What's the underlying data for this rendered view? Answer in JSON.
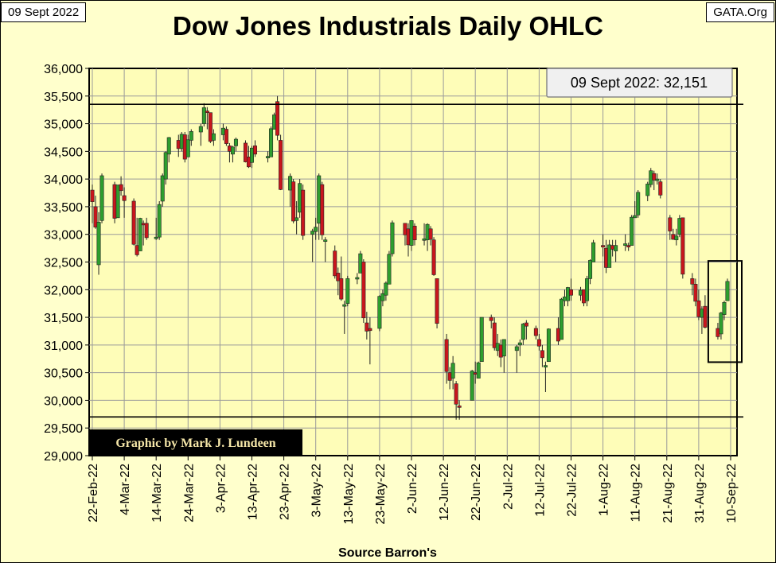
{
  "header": {
    "date_tag": "09 Sept 2022",
    "site_tag": "GATA.Org",
    "title": "Dow Jones Industrials Daily OHLC"
  },
  "colors": {
    "background": "#ffffcc",
    "plot_bg": "#fefdb8",
    "up": "#2e9e2e",
    "down": "#c8161d",
    "grid": "#9a9a9a"
  },
  "chart_data": {
    "type": "ohlc",
    "title": "Dow Jones Industrials Daily OHLC",
    "xlabel": "Source Barron's",
    "ylabel": "",
    "ylim": [
      29000,
      36000
    ],
    "y_ticks": [
      "29,000",
      "29,500",
      "30,000",
      "30,500",
      "31,000",
      "31,500",
      "32,000",
      "32,500",
      "33,000",
      "33,500",
      "34,000",
      "34,500",
      "35,000",
      "35,500",
      "36,000"
    ],
    "x_ticks": [
      "22-Feb-22",
      "4-Mar-22",
      "14-Mar-22",
      "24-Mar-22",
      "3-Apr-22",
      "13-Apr-22",
      "23-Apr-22",
      "3-May-22",
      "13-May-22",
      "23-May-22",
      "2-Jun-22",
      "12-Jun-22",
      "22-Jun-22",
      "2-Jul-22",
      "12-Jul-22",
      "22-Jul-22",
      "1-Aug-22",
      "11-Aug-22",
      "21-Aug-22",
      "31-Aug-22",
      "10-Sep-22"
    ],
    "grid": true,
    "reference_lines": [
      35350,
      29700
    ],
    "annotation": "09 Sept 2022: 32,151",
    "credit": "Graphic by Mark J. Lundeen",
    "ohlc": [
      [
        "2022-02-22",
        33800,
        33900,
        33200,
        33590,
        "down"
      ],
      [
        "2022-02-23",
        33500,
        33700,
        33100,
        33130,
        "down"
      ],
      [
        "2022-02-24",
        32450,
        33400,
        32270,
        33220,
        "up"
      ],
      [
        "2022-02-25",
        33250,
        34100,
        33200,
        34060,
        "up"
      ],
      [
        "2022-03-01",
        33900,
        33950,
        33200,
        33290,
        "down"
      ],
      [
        "2022-03-02",
        33300,
        33900,
        33300,
        33890,
        "up"
      ],
      [
        "2022-03-03",
        33900,
        34050,
        33700,
        33790,
        "down"
      ],
      [
        "2022-03-04",
        33700,
        33850,
        33300,
        33610,
        "down"
      ],
      [
        "2022-03-07",
        33600,
        33650,
        32800,
        32820,
        "down"
      ],
      [
        "2022-03-08",
        32800,
        33300,
        32600,
        32630,
        "down"
      ],
      [
        "2022-03-09",
        32700,
        33300,
        32700,
        33290,
        "up"
      ],
      [
        "2022-03-10",
        33200,
        33250,
        32800,
        33170,
        "down"
      ],
      [
        "2022-03-11",
        33200,
        33300,
        32900,
        32940,
        "down"
      ],
      [
        "2022-03-14",
        32950,
        33300,
        32900,
        32950,
        "up"
      ],
      [
        "2022-03-15",
        32950,
        33600,
        32900,
        33540,
        "up"
      ],
      [
        "2022-03-16",
        33600,
        34100,
        33500,
        34060,
        "up"
      ],
      [
        "2022-03-17",
        34000,
        34500,
        33900,
        34480,
        "up"
      ],
      [
        "2022-03-18",
        34450,
        34760,
        34300,
        34750,
        "up"
      ],
      [
        "2022-03-21",
        34700,
        34800,
        34400,
        34550,
        "down"
      ],
      [
        "2022-03-22",
        34550,
        34850,
        34500,
        34810,
        "up"
      ],
      [
        "2022-03-23",
        34800,
        34850,
        34300,
        34360,
        "down"
      ],
      [
        "2022-03-24",
        34400,
        34800,
        34400,
        34710,
        "up"
      ],
      [
        "2022-03-25",
        34700,
        34900,
        34600,
        34860,
        "up"
      ],
      [
        "2022-03-28",
        34850,
        35000,
        34600,
        34950,
        "up"
      ],
      [
        "2022-03-29",
        35000,
        35370,
        34950,
        35290,
        "up"
      ],
      [
        "2022-03-30",
        35200,
        35300,
        34900,
        35230,
        "down"
      ],
      [
        "2022-03-31",
        35200,
        35200,
        34650,
        34680,
        "down"
      ],
      [
        "2022-04-01",
        34700,
        34900,
        34600,
        34820,
        "up"
      ],
      [
        "2022-04-04",
        34800,
        35000,
        34700,
        34920,
        "up"
      ],
      [
        "2022-04-05",
        34900,
        34950,
        34600,
        34640,
        "down"
      ],
      [
        "2022-04-06",
        34600,
        34650,
        34300,
        34500,
        "down"
      ],
      [
        "2022-04-07",
        34450,
        34600,
        34300,
        34580,
        "up"
      ],
      [
        "2022-04-08",
        34600,
        34750,
        34500,
        34720,
        "up"
      ],
      [
        "2022-04-11",
        34650,
        34700,
        34300,
        34310,
        "down"
      ],
      [
        "2022-04-12",
        34400,
        34600,
        34200,
        34220,
        "down"
      ],
      [
        "2022-04-13",
        34300,
        34600,
        34200,
        34560,
        "up"
      ],
      [
        "2022-04-14",
        34600,
        34700,
        34400,
        34450,
        "down"
      ],
      [
        "2022-04-18",
        34400,
        34500,
        34300,
        34410,
        "up"
      ],
      [
        "2022-04-19",
        34400,
        34950,
        34400,
        34910,
        "up"
      ],
      [
        "2022-04-20",
        34900,
        35200,
        34900,
        35160,
        "up"
      ],
      [
        "2022-04-21",
        35400,
        35500,
        34700,
        34790,
        "down"
      ],
      [
        "2022-04-22",
        34700,
        34800,
        33800,
        33810,
        "down"
      ],
      [
        "2022-04-25",
        33800,
        34100,
        33500,
        34050,
        "up"
      ],
      [
        "2022-04-26",
        33950,
        34000,
        33200,
        33240,
        "down"
      ],
      [
        "2022-04-27",
        33250,
        33600,
        33000,
        33300,
        "up"
      ],
      [
        "2022-04-28",
        33400,
        34000,
        33300,
        33920,
        "up"
      ],
      [
        "2022-04-29",
        33800,
        33900,
        32900,
        32980,
        "down"
      ],
      [
        "2022-05-02",
        33000,
        33100,
        32500,
        33060,
        "up"
      ],
      [
        "2022-05-03",
        33050,
        33300,
        32900,
        33130,
        "up"
      ],
      [
        "2022-05-04",
        33200,
        34100,
        32900,
        34060,
        "up"
      ],
      [
        "2022-05-05",
        33900,
        33950,
        32900,
        32990,
        "down"
      ],
      [
        "2022-05-06",
        32900,
        32950,
        32500,
        32900,
        "up"
      ],
      [
        "2022-05-09",
        32700,
        32800,
        32200,
        32250,
        "down"
      ],
      [
        "2022-05-10",
        32300,
        32400,
        31900,
        32160,
        "down"
      ],
      [
        "2022-05-11",
        32200,
        32600,
        31800,
        31830,
        "down"
      ],
      [
        "2022-05-12",
        31700,
        31800,
        31200,
        31730,
        "up"
      ],
      [
        "2022-05-13",
        31750,
        32250,
        31700,
        32200,
        "up"
      ],
      [
        "2022-05-16",
        32200,
        32300,
        32100,
        32220,
        "up"
      ],
      [
        "2022-05-17",
        32300,
        32700,
        32300,
        32650,
        "up"
      ],
      [
        "2022-05-18",
        32500,
        32550,
        31400,
        31490,
        "down"
      ],
      [
        "2022-05-19",
        31400,
        31600,
        31100,
        31250,
        "down"
      ],
      [
        "2022-05-20",
        31300,
        31500,
        30650,
        31260,
        "down"
      ],
      [
        "2022-05-23",
        31300,
        31900,
        31250,
        31880,
        "up"
      ],
      [
        "2022-05-24",
        31800,
        32000,
        31700,
        31930,
        "up"
      ],
      [
        "2022-05-25",
        31900,
        32150,
        31800,
        32120,
        "up"
      ],
      [
        "2022-05-26",
        32100,
        32700,
        32100,
        32640,
        "up"
      ],
      [
        "2022-05-27",
        32650,
        33250,
        32600,
        33210,
        "up"
      ],
      [
        "2022-05-31",
        33200,
        33200,
        32800,
        32990,
        "down"
      ],
      [
        "2022-06-01",
        33100,
        33200,
        32600,
        32810,
        "down"
      ],
      [
        "2022-06-02",
        32800,
        33250,
        32700,
        33250,
        "up"
      ],
      [
        "2022-06-03",
        33150,
        33200,
        32800,
        32900,
        "down"
      ],
      [
        "2022-06-06",
        32900,
        33200,
        32800,
        32920,
        "up"
      ],
      [
        "2022-06-07",
        32900,
        33200,
        32700,
        33180,
        "up"
      ],
      [
        "2022-06-08",
        33100,
        33150,
        32800,
        32910,
        "down"
      ],
      [
        "2022-06-09",
        32900,
        32950,
        32250,
        32270,
        "down"
      ],
      [
        "2022-06-10",
        32200,
        32200,
        31300,
        31390,
        "down"
      ],
      [
        "2022-06-13",
        31100,
        31200,
        30300,
        30520,
        "down"
      ],
      [
        "2022-06-14",
        30500,
        30600,
        30200,
        30360,
        "down"
      ],
      [
        "2022-06-15",
        30400,
        30800,
        30200,
        30670,
        "up"
      ],
      [
        "2022-06-16",
        30300,
        30350,
        29650,
        29930,
        "down"
      ],
      [
        "2022-06-17",
        29900,
        30000,
        29650,
        29890,
        "down"
      ],
      [
        "2022-06-21",
        30000,
        30550,
        30000,
        30530,
        "up"
      ],
      [
        "2022-06-22",
        30500,
        30700,
        30300,
        30480,
        "down"
      ],
      [
        "2022-06-23",
        30400,
        30700,
        30400,
        30680,
        "up"
      ],
      [
        "2022-06-24",
        30700,
        31500,
        30700,
        31500,
        "up"
      ],
      [
        "2022-06-27",
        31500,
        31550,
        31300,
        31440,
        "down"
      ],
      [
        "2022-06-28",
        31400,
        31500,
        30900,
        30950,
        "down"
      ],
      [
        "2022-06-29",
        30900,
        31200,
        30800,
        31030,
        "up"
      ],
      [
        "2022-06-30",
        31000,
        31100,
        30600,
        30780,
        "down"
      ],
      [
        "2022-07-01",
        30800,
        31100,
        30500,
        31100,
        "up"
      ],
      [
        "2022-07-05",
        30900,
        31000,
        30500,
        30970,
        "up"
      ],
      [
        "2022-07-06",
        31000,
        31100,
        30800,
        31040,
        "up"
      ],
      [
        "2022-07-07",
        31100,
        31400,
        31000,
        31380,
        "up"
      ],
      [
        "2022-07-08",
        31400,
        31450,
        31100,
        31340,
        "down"
      ],
      [
        "2022-07-11",
        31300,
        31350,
        31100,
        31170,
        "down"
      ],
      [
        "2022-07-12",
        31100,
        31200,
        30900,
        30980,
        "down"
      ],
      [
        "2022-07-13",
        30900,
        31000,
        30600,
        30770,
        "down"
      ],
      [
        "2022-07-14",
        30600,
        30700,
        30150,
        30630,
        "up"
      ],
      [
        "2022-07-15",
        30700,
        31300,
        30700,
        31290,
        "up"
      ],
      [
        "2022-07-18",
        31300,
        31500,
        31000,
        31070,
        "down"
      ],
      [
        "2022-07-19",
        31100,
        31850,
        31100,
        31830,
        "up"
      ],
      [
        "2022-07-20",
        31800,
        32000,
        31700,
        31870,
        "up"
      ],
      [
        "2022-07-21",
        31800,
        32050,
        31700,
        32040,
        "up"
      ],
      [
        "2022-07-22",
        32000,
        32200,
        31800,
        31900,
        "down"
      ],
      [
        "2022-07-25",
        31900,
        32050,
        31800,
        31990,
        "up"
      ],
      [
        "2022-07-26",
        32000,
        32000,
        31700,
        31760,
        "down"
      ],
      [
        "2022-07-27",
        31800,
        32250,
        31700,
        32200,
        "up"
      ],
      [
        "2022-07-28",
        32200,
        32550,
        32100,
        32530,
        "up"
      ],
      [
        "2022-07-29",
        32500,
        32900,
        32500,
        32850,
        "up"
      ],
      [
        "2022-08-01",
        32800,
        33000,
        32600,
        32800,
        "down"
      ],
      [
        "2022-08-02",
        32750,
        32900,
        32300,
        32400,
        "down"
      ],
      [
        "2022-08-03",
        32400,
        32900,
        32400,
        32810,
        "up"
      ],
      [
        "2022-08-04",
        32800,
        32900,
        32600,
        32730,
        "down"
      ],
      [
        "2022-08-05",
        32700,
        32900,
        32500,
        32800,
        "up"
      ],
      [
        "2022-08-08",
        32800,
        33000,
        32700,
        32830,
        "up"
      ],
      [
        "2022-08-09",
        32800,
        32850,
        32700,
        32770,
        "down"
      ],
      [
        "2022-08-10",
        32800,
        33350,
        32800,
        33310,
        "up"
      ],
      [
        "2022-08-11",
        33300,
        33600,
        33300,
        33340,
        "up"
      ],
      [
        "2022-08-12",
        33350,
        33800,
        33300,
        33760,
        "up"
      ],
      [
        "2022-08-15",
        33700,
        33950,
        33600,
        33910,
        "up"
      ],
      [
        "2022-08-16",
        33900,
        34200,
        33850,
        34150,
        "up"
      ],
      [
        "2022-08-17",
        34100,
        34150,
        33800,
        33980,
        "down"
      ],
      [
        "2022-08-18",
        34000,
        34100,
        33900,
        33990,
        "up"
      ],
      [
        "2022-08-19",
        33950,
        34000,
        33650,
        33710,
        "down"
      ],
      [
        "2022-08-22",
        33300,
        33350,
        32900,
        33060,
        "down"
      ],
      [
        "2022-08-23",
        33000,
        33100,
        32900,
        32910,
        "down"
      ],
      [
        "2022-08-24",
        32900,
        33100,
        32800,
        32970,
        "up"
      ],
      [
        "2022-08-25",
        33000,
        33350,
        32950,
        33290,
        "up"
      ],
      [
        "2022-08-26",
        33300,
        33300,
        32200,
        32280,
        "down"
      ],
      [
        "2022-08-29",
        32200,
        32300,
        31900,
        32100,
        "down"
      ],
      [
        "2022-08-30",
        32100,
        32200,
        31700,
        31790,
        "down"
      ],
      [
        "2022-08-31",
        31800,
        32000,
        31450,
        31510,
        "down"
      ],
      [
        "2022-09-01",
        31500,
        31700,
        31200,
        31650,
        "up"
      ],
      [
        "2022-09-02",
        31700,
        31900,
        31300,
        31320,
        "down"
      ],
      [
        "2022-09-06",
        31300,
        31400,
        31100,
        31150,
        "down"
      ],
      [
        "2022-09-07",
        31200,
        31600,
        31100,
        31580,
        "up"
      ],
      [
        "2022-09-08",
        31550,
        31800,
        31450,
        31770,
        "up"
      ],
      [
        "2022-09-09",
        31800,
        32200,
        31800,
        32150,
        "up"
      ]
    ]
  }
}
